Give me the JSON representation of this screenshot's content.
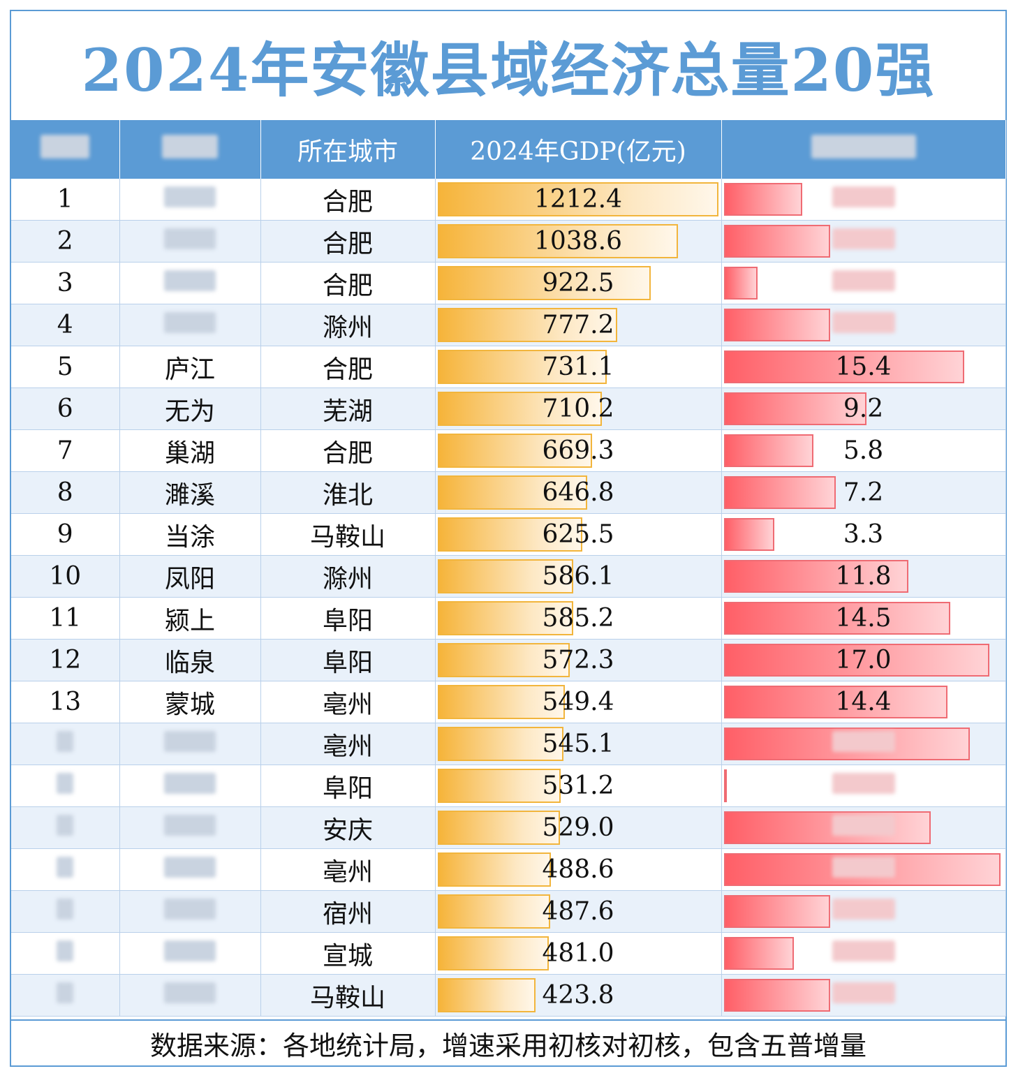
{
  "title": "2024年安徽县域经济总量20强",
  "headers": {
    "rank": "",
    "county": "",
    "city": "所在城市",
    "gdp": "2024年GDP(亿元)",
    "growth": ""
  },
  "rows": [
    {
      "rank": "1",
      "county": "",
      "city": "合肥",
      "gdp": "1212.4",
      "growth": ""
    },
    {
      "rank": "2",
      "county": "",
      "city": "合肥",
      "gdp": "1038.6",
      "growth": ""
    },
    {
      "rank": "3",
      "county": "",
      "city": "合肥",
      "gdp": "922.5",
      "growth": ""
    },
    {
      "rank": "4",
      "county": "",
      "city": "滁州",
      "gdp": "777.2",
      "growth": ""
    },
    {
      "rank": "5",
      "county": "庐江",
      "city": "合肥",
      "gdp": "731.1",
      "growth": "15.4"
    },
    {
      "rank": "6",
      "county": "无为",
      "city": "芜湖",
      "gdp": "710.2",
      "growth": "9.2"
    },
    {
      "rank": "7",
      "county": "巢湖",
      "city": "合肥",
      "gdp": "669.3",
      "growth": "5.8"
    },
    {
      "rank": "8",
      "county": "濉溪",
      "city": "淮北",
      "gdp": "646.8",
      "growth": "7.2"
    },
    {
      "rank": "9",
      "county": "当涂",
      "city": "马鞍山",
      "gdp": "625.5",
      "growth": "3.3"
    },
    {
      "rank": "10",
      "county": "凤阳",
      "city": "滁州",
      "gdp": "586.1",
      "growth": "11.8"
    },
    {
      "rank": "11",
      "county": "颍上",
      "city": "阜阳",
      "gdp": "585.2",
      "growth": "14.5"
    },
    {
      "rank": "12",
      "county": "临泉",
      "city": "阜阳",
      "gdp": "572.3",
      "growth": "17.0"
    },
    {
      "rank": "13",
      "county": "蒙城",
      "city": "亳州",
      "gdp": "549.4",
      "growth": "14.4"
    },
    {
      "rank": "",
      "county": "",
      "city": "亳州",
      "gdp": "545.1",
      "growth": ""
    },
    {
      "rank": "",
      "county": "",
      "city": "阜阳",
      "gdp": "531.2",
      "growth": ""
    },
    {
      "rank": "",
      "county": "",
      "city": "安庆",
      "gdp": "529.0",
      "growth": ""
    },
    {
      "rank": "",
      "county": "",
      "city": "亳州",
      "gdp": "488.6",
      "growth": ""
    },
    {
      "rank": "",
      "county": "",
      "city": "宿州",
      "gdp": "487.6",
      "growth": ""
    },
    {
      "rank": "",
      "county": "",
      "city": "宣城",
      "gdp": "481.0",
      "growth": ""
    },
    {
      "rank": "",
      "county": "",
      "city": "马鞍山",
      "gdp": "423.8",
      "growth": ""
    }
  ],
  "growth_bar_fraction": [
    0.28,
    0.38,
    0.12,
    0.38,
    0.86,
    0.51,
    0.32,
    0.4,
    0.18,
    0.66,
    0.81,
    0.95,
    0.8,
    0.88,
    0.005,
    0.74,
    0.99,
    0.38,
    0.25,
    0.38
  ],
  "colors": {
    "header_bg": "#5b9bd5",
    "title": "#5b9bd5",
    "gdp_bar": "#f6b43a",
    "growth_bar": "#ff5f67",
    "alt_row": "#e9f1fa"
  },
  "footer": "数据来源：各地统计局，增速采用初核对初核，包含五普增量"
}
